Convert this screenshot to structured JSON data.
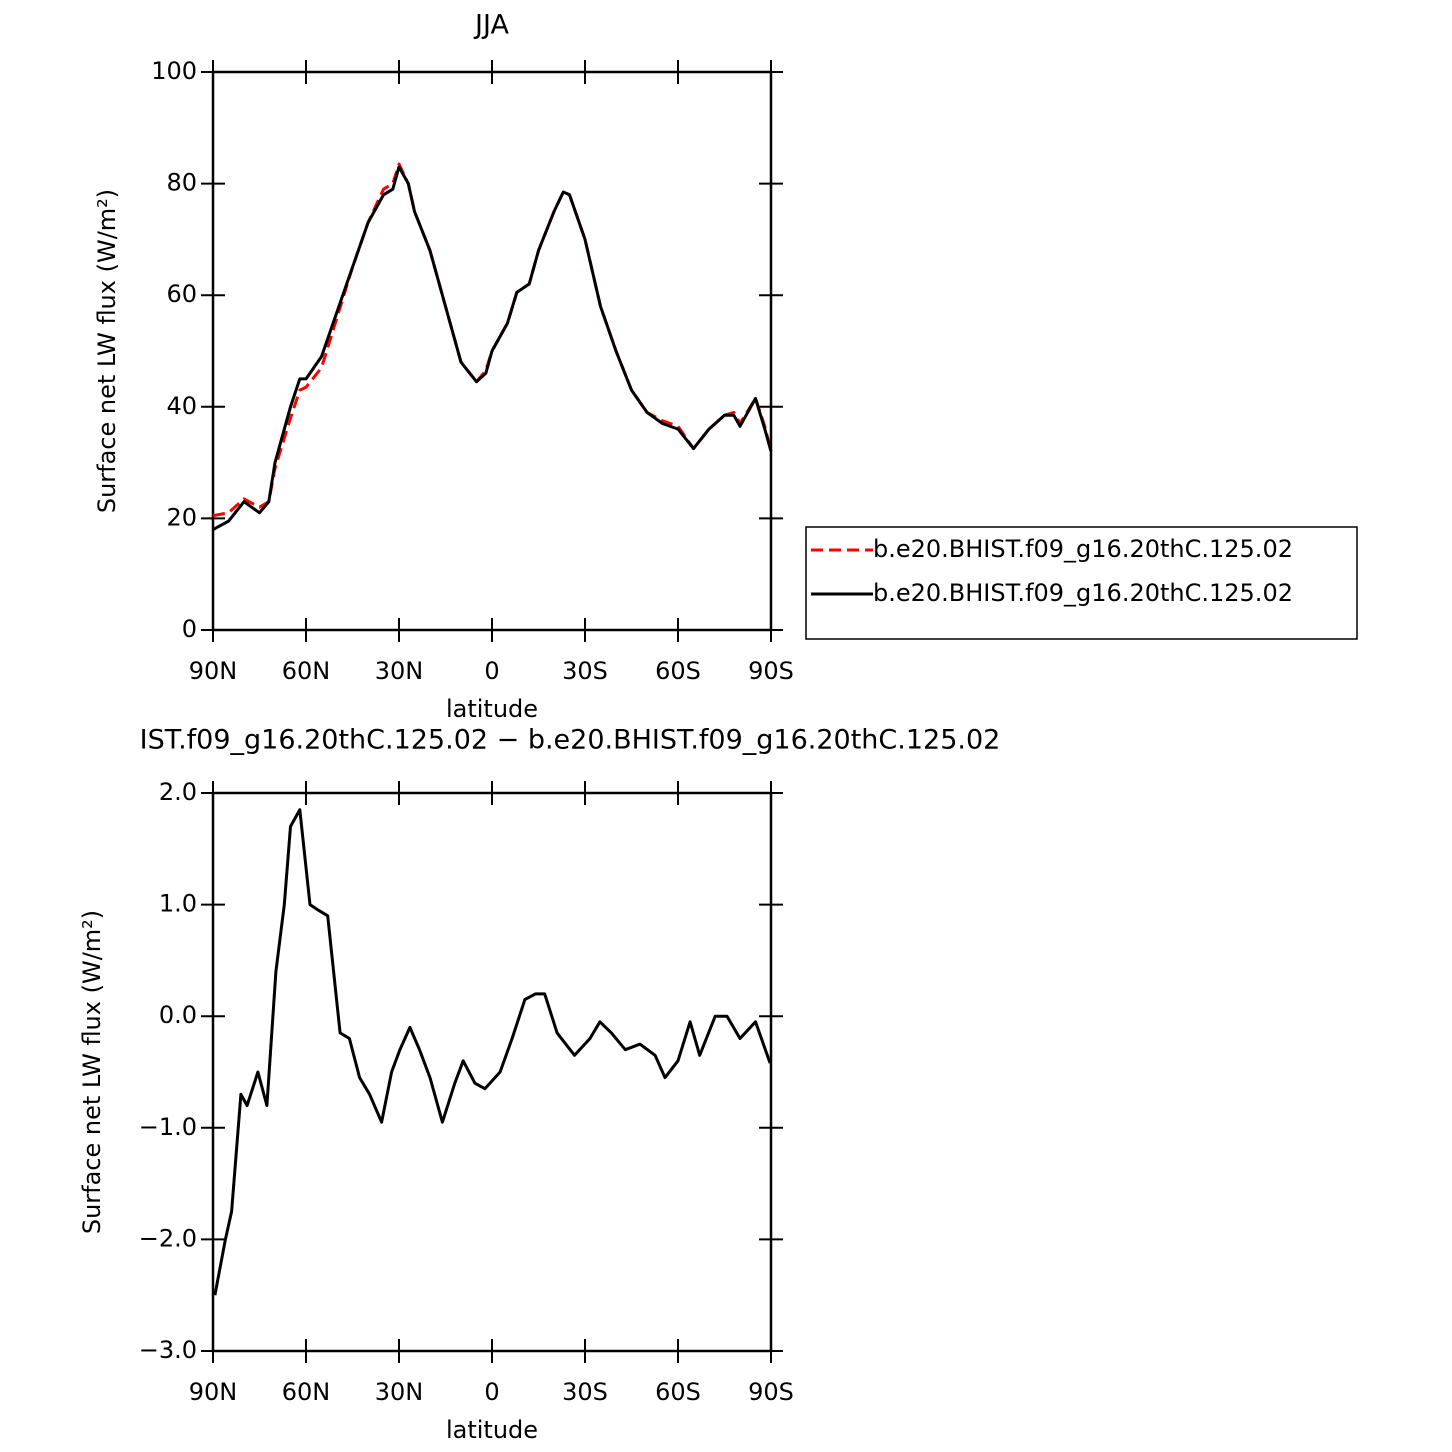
{
  "chart_data": [
    {
      "type": "line",
      "title": "JJA",
      "xlabel": "latitude",
      "ylabel": "Surface net LW flux (W/m²)",
      "xlim": [
        90,
        -90
      ],
      "ylim": [
        0,
        100
      ],
      "xticks": [
        {
          "value": 90,
          "label": "90N"
        },
        {
          "value": 60,
          "label": "60N"
        },
        {
          "value": 30,
          "label": "30N"
        },
        0,
        {
          "value": -30,
          "label": "30S"
        },
        {
          "value": -60,
          "label": "60S"
        },
        {
          "value": -90,
          "label": "90S"
        }
      ],
      "yticks": [
        0,
        20,
        40,
        60,
        80,
        100
      ],
      "legend": "right",
      "x": [
        90,
        85,
        80,
        75,
        72,
        70,
        65,
        62,
        60,
        55,
        50,
        45,
        40,
        35,
        32,
        30,
        27,
        25,
        20,
        15,
        10,
        5,
        2,
        0,
        -5,
        -8,
        -12,
        -15,
        -20,
        -23,
        -25,
        -30,
        -35,
        -40,
        -45,
        -50,
        -55,
        -60,
        -65,
        -70,
        -75,
        -78,
        -80,
        -85,
        -88,
        -90
      ],
      "series": [
        {
          "name": "b.e20.BHIST.f09_g16.20thC.125.02",
          "color": "#ff0000",
          "dash": true,
          "values": [
            20.5,
            21,
            23.5,
            22,
            23,
            29,
            38,
            43,
            43.5,
            47,
            56,
            65,
            73,
            79,
            80,
            83.5,
            80,
            75,
            68,
            58,
            48,
            44.5,
            46.5,
            50,
            55,
            60.5,
            62,
            68,
            75,
            78.5,
            78,
            70,
            58,
            50,
            43,
            39,
            37.5,
            36.5,
            32.5,
            36,
            38.5,
            39,
            37,
            41.5,
            36.5,
            32
          ]
        },
        {
          "name": "b.e20.BHIST.f09_g16.20thC.125.02",
          "color": "#000000",
          "dash": false,
          "values": [
            18,
            19.5,
            23,
            21,
            23,
            30,
            40,
            45,
            45,
            49,
            57,
            65,
            73,
            78,
            79,
            83,
            80,
            75,
            68,
            58,
            48,
            44.5,
            46,
            50,
            55,
            60.5,
            62,
            68,
            75,
            78.5,
            78,
            70,
            58,
            50,
            43,
            39,
            37,
            36,
            32.5,
            36,
            38.5,
            38.5,
            36.5,
            41.5,
            36,
            32
          ]
        }
      ]
    },
    {
      "type": "line",
      "title": "IST.f09_g16.20thC.125.02 − b.e20.BHIST.f09_g16.20thC.125.02",
      "xlabel": "latitude",
      "ylabel": "Surface net LW flux (W/m²)",
      "xlim": [
        90,
        -90
      ],
      "ylim": [
        -3,
        2
      ],
      "xticks": [
        {
          "value": 90,
          "label": "90N"
        },
        {
          "value": 60,
          "label": "60N"
        },
        {
          "value": 30,
          "label": "30N"
        },
        0,
        {
          "value": -30,
          "label": "30S"
        },
        {
          "value": -60,
          "label": "60S"
        },
        {
          "value": -90,
          "label": "90S"
        }
      ],
      "yticks": [
        {
          "value": -3,
          "label": "−3.0"
        },
        {
          "value": -2,
          "label": "−2.0"
        },
        {
          "value": -1,
          "label": "−1.0"
        },
        {
          "value": 0,
          "label": "0.0"
        },
        {
          "value": 1,
          "label": "1.0"
        },
        {
          "value": 2,
          "label": "2.0"
        }
      ],
      "x": [
        89.4,
        86,
        84,
        81,
        79,
        75.5,
        72.6,
        69.7,
        67,
        65,
        62,
        58.7,
        56,
        53,
        49,
        46,
        42.7,
        39.5,
        35.6,
        32.4,
        29.7,
        26.5,
        23.4,
        20,
        16,
        12,
        9.3,
        5.5,
        2.3,
        -2.6,
        -6.5,
        -10.6,
        -14,
        -17,
        -21,
        -26.6,
        -31.6,
        -34.8,
        -38.5,
        -43,
        -47.7,
        -52.6,
        -55.8,
        -60,
        -63.9,
        -67,
        -72,
        -75.8,
        -80,
        -85,
        -89.7
      ],
      "series": [
        {
          "color": "#000000",
          "dash": false,
          "values": [
            -2.5,
            -2.0,
            -1.75,
            -0.7,
            -0.8,
            -0.5,
            -0.8,
            0.4,
            1.0,
            1.7,
            1.85,
            1.0,
            0.95,
            0.9,
            -0.15,
            -0.2,
            -0.55,
            -0.7,
            -0.95,
            -0.5,
            -0.3,
            -0.1,
            -0.3,
            -0.55,
            -0.95,
            -0.6,
            -0.4,
            -0.6,
            -0.65,
            -0.5,
            -0.2,
            0.15,
            0.2,
            0.2,
            -0.15,
            -0.35,
            -0.2,
            -0.05,
            -0.15,
            -0.3,
            -0.25,
            -0.35,
            -0.55,
            -0.4,
            -0.05,
            -0.35,
            0.0,
            0.0,
            -0.2,
            -0.05,
            -0.42
          ]
        }
      ]
    }
  ]
}
